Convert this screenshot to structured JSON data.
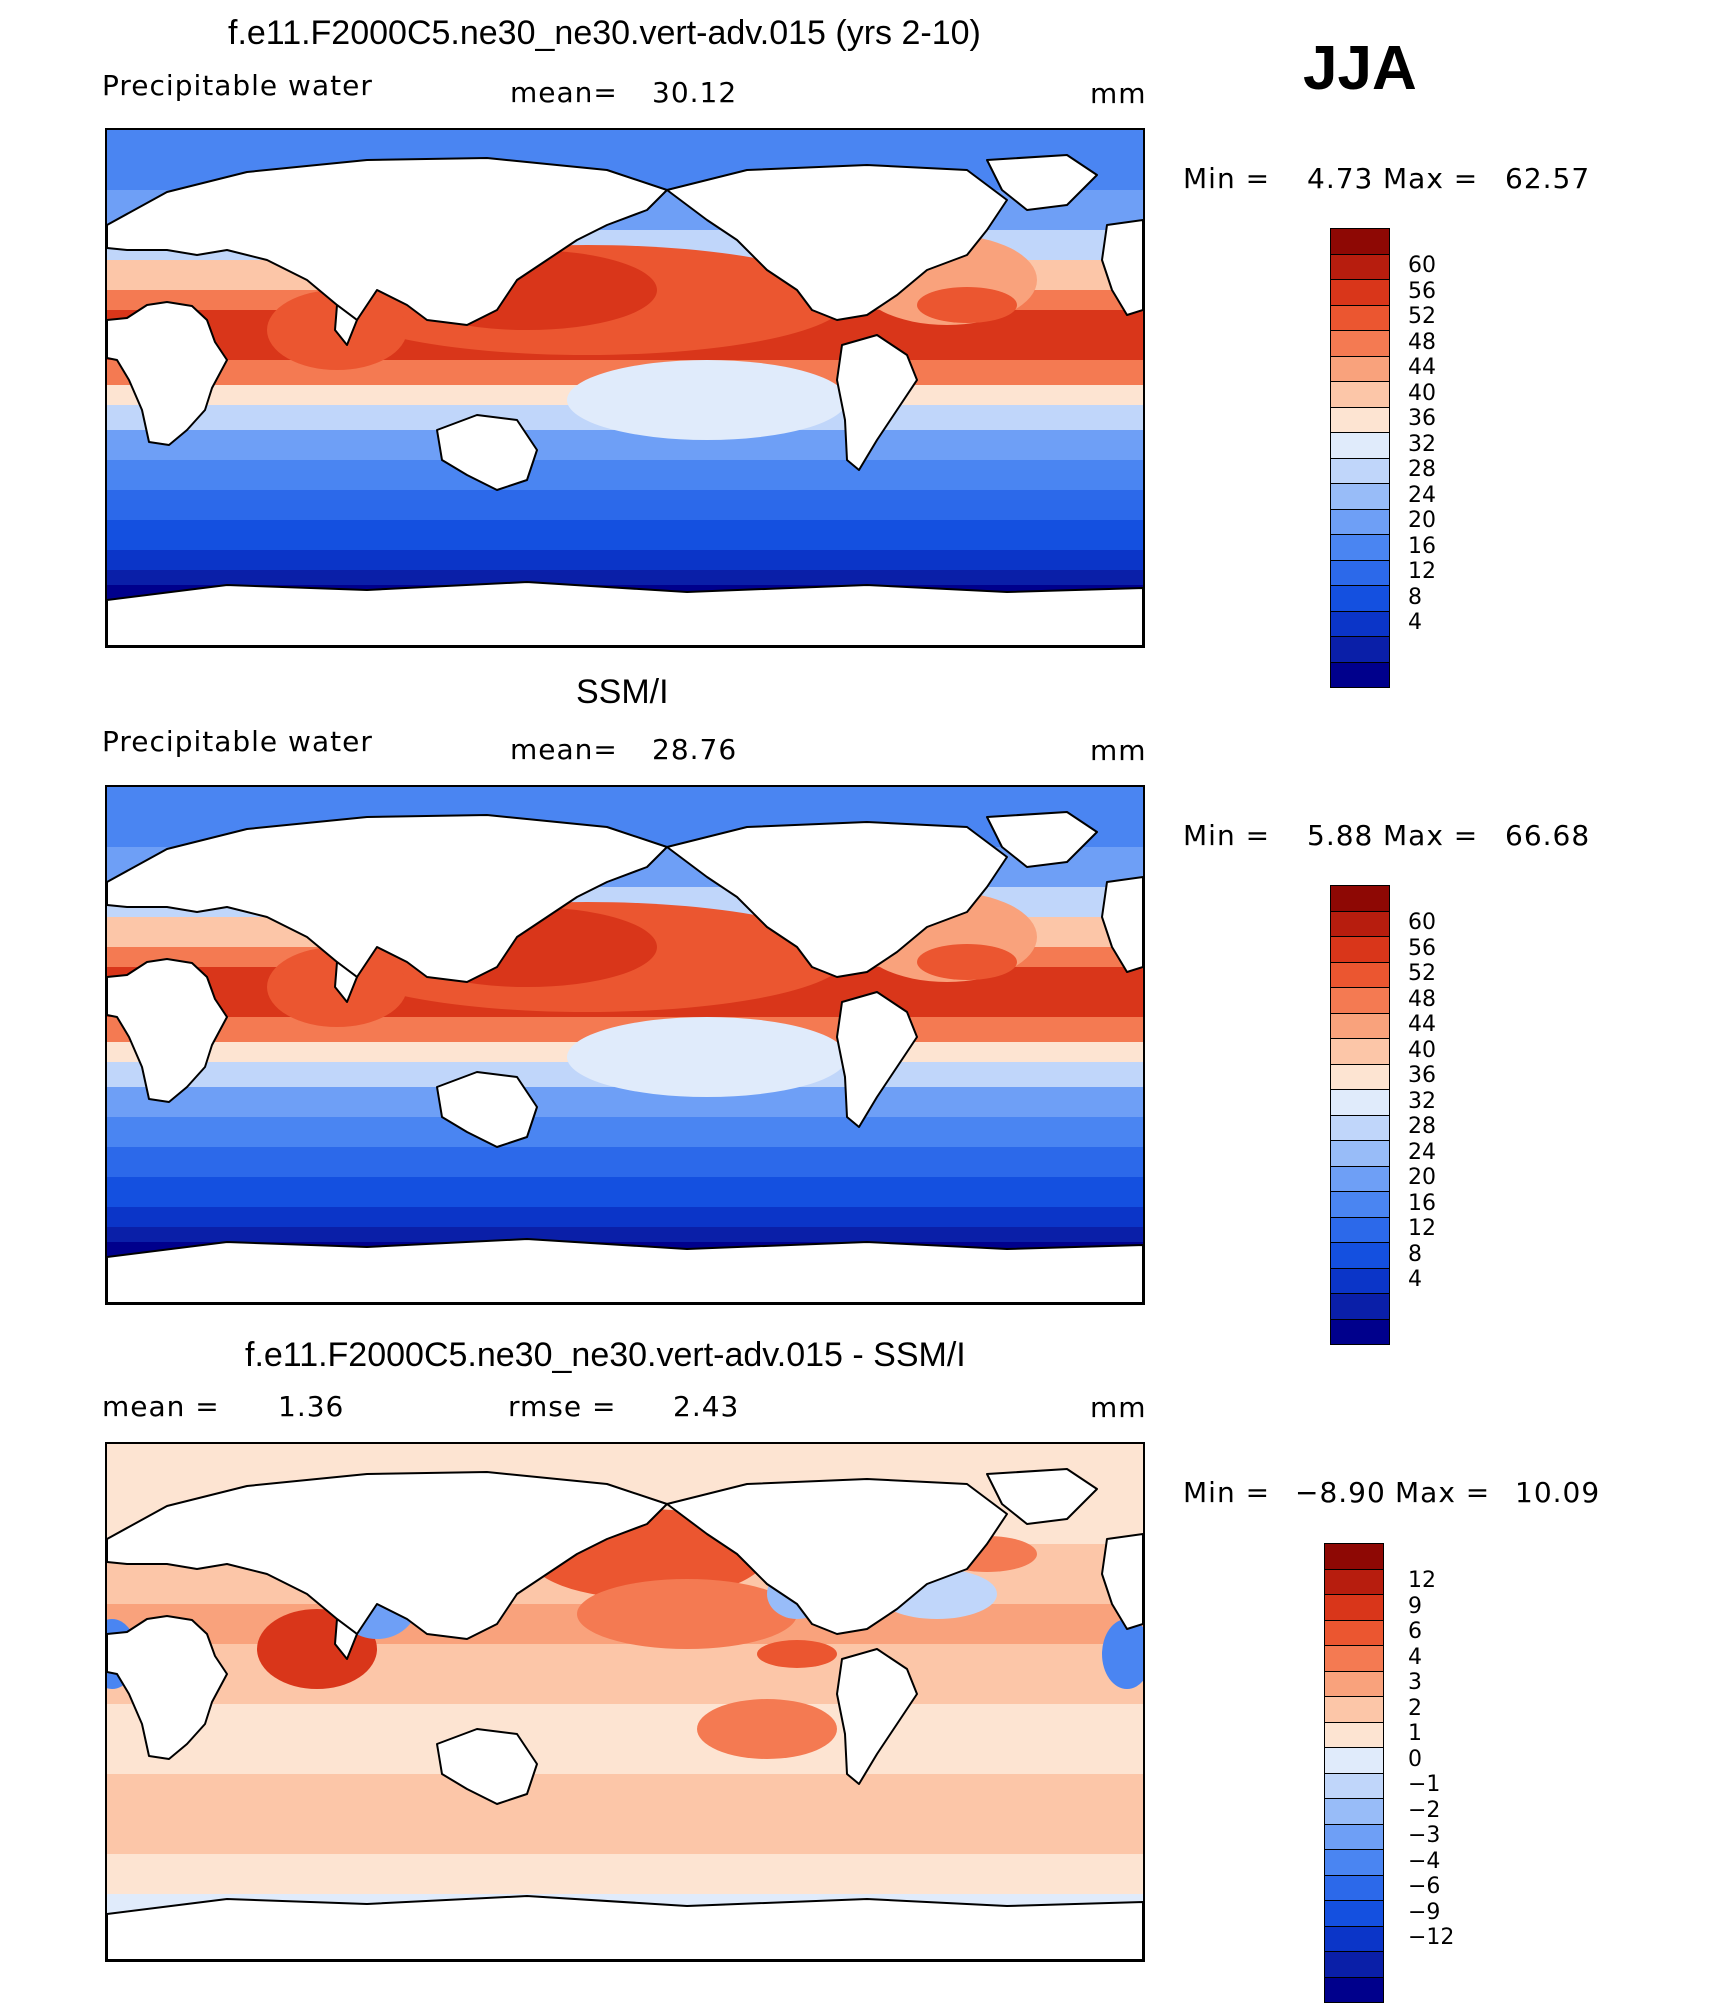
{
  "season": "JJA",
  "panels": [
    {
      "id": "model",
      "title": "f.e11.F2000C5.ne30_ne30.vert-adv.015 (yrs 2-10)",
      "left_label": "Precipitable  water",
      "stat1_label": "mean=",
      "stat1_value": "30.12",
      "stat2_label": "",
      "stat2_value": "",
      "units": "mm",
      "min_label": "Min  =",
      "min_value": "4.73",
      "max_label": "Max  =",
      "max_value": "62.57",
      "scale": "abs"
    },
    {
      "id": "obs",
      "title": "SSM/I",
      "left_label": "Precipitable  water",
      "stat1_label": "mean=",
      "stat1_value": "28.76",
      "stat2_label": "",
      "stat2_value": "",
      "units": "mm",
      "min_label": "Min  =",
      "min_value": "5.88",
      "max_label": "Max  =",
      "max_value": "66.68",
      "scale": "abs"
    },
    {
      "id": "diff",
      "title": "f.e11.F2000C5.ne30_ne30.vert-adv.015 - SSM/I",
      "left_label": "",
      "stat1_label": "mean  =",
      "stat1_value": "1.36",
      "stat2_label": "rmse  =",
      "stat2_value": "2.43",
      "units": "mm",
      "min_label": "Min  =",
      "min_value": "−8.90",
      "max_label": "Max  =",
      "max_value": "10.09",
      "scale": "diff"
    }
  ],
  "colorbars": {
    "abs": {
      "colors": [
        "#00008c",
        "#0a1fa8",
        "#0b35c8",
        "#1450e0",
        "#2c69ea",
        "#4a85f2",
        "#6e9ff6",
        "#98bcf8",
        "#c0d6fa",
        "#e0ebfb",
        "#fde4d2",
        "#fcc6a8",
        "#f9a27c",
        "#f47a52",
        "#eb5630",
        "#d9361a",
        "#b71d0e",
        "#8e0804"
      ],
      "labels": [
        "60",
        "56",
        "52",
        "48",
        "44",
        "40",
        "36",
        "32",
        "28",
        "24",
        "20",
        "16",
        "12",
        "8",
        "4"
      ]
    },
    "diff": {
      "colors": [
        "#00008c",
        "#0a1fa8",
        "#0b35c8",
        "#1450e0",
        "#2c69ea",
        "#4a85f2",
        "#6e9ff6",
        "#98bcf8",
        "#c0d6fa",
        "#e0ebfb",
        "#fde4d2",
        "#fcc6a8",
        "#f9a27c",
        "#f47a52",
        "#eb5630",
        "#d9361a",
        "#b71d0e",
        "#8e0804"
      ],
      "labels": [
        "12",
        "9",
        "6",
        "4",
        "3",
        "2",
        "1",
        "0",
        "−1",
        "−2",
        "−3",
        "−4",
        "−6",
        "−9",
        "−12"
      ]
    }
  },
  "colors": {
    "land": "#ffffff",
    "coast": "#000000"
  }
}
